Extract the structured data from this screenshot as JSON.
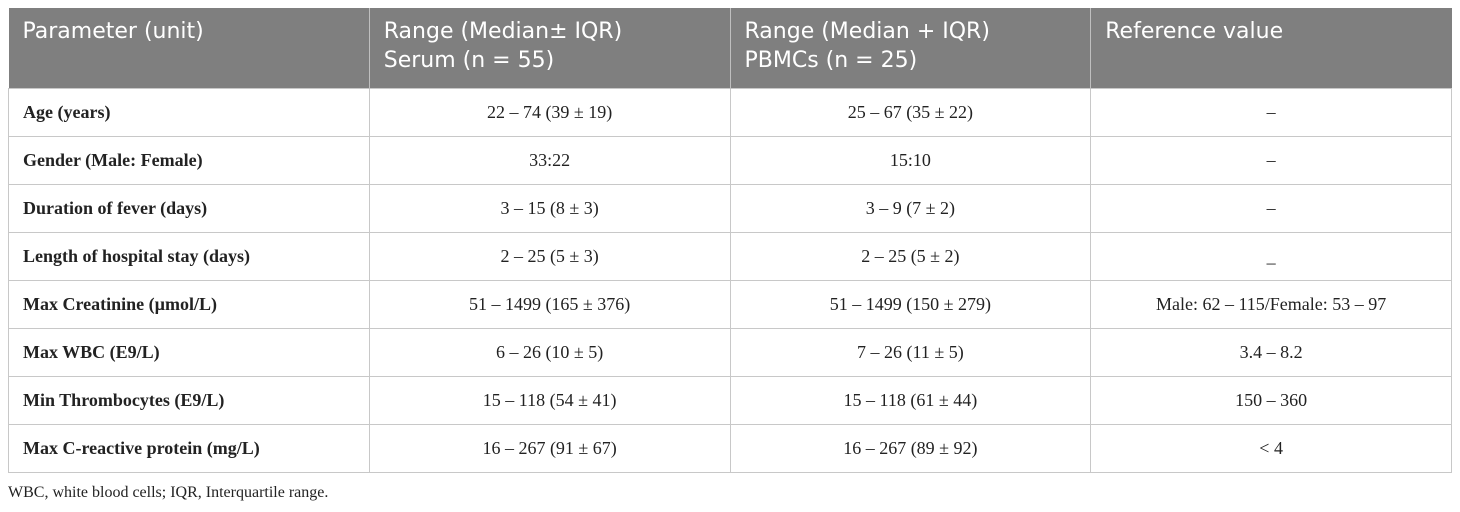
{
  "table": {
    "header": [
      [
        "Parameter (unit)"
      ],
      [
        "Range (Median± IQR)",
        "Serum (n = 55)"
      ],
      [
        "Range (Median + IQR)",
        "PBMCs (n = 25)"
      ],
      [
        "Reference value"
      ]
    ],
    "rows": [
      [
        "Age (years)",
        "22 – 74 (39 ± 19)",
        "25 – 67 (35 ± 22)",
        "–"
      ],
      [
        "Gender (Male: Female)",
        "33:22",
        "15:10",
        "–"
      ],
      [
        "Duration of fever (days)",
        "3 – 15 (8 ± 3)",
        "3 – 9 (7 ± 2)",
        "–"
      ],
      [
        "Length of hospital stay (days)",
        "2 – 25 (5 ± 3)",
        "2 – 25 (5 ± 2)",
        "_"
      ],
      [
        "Max Creatinine (µmol/L)",
        "51 – 1499 (165 ± 376)",
        "51 – 1499 (150 ± 279)",
        "Male: 62 – 115/Female: 53 – 97"
      ],
      [
        "Max WBC (E9/L)",
        "6 – 26 (10 ± 5)",
        "7 – 26 (11 ± 5)",
        "3.4 – 8.2"
      ],
      [
        "Min Thrombocytes (E9/L)",
        "15 – 118 (54 ± 41)",
        "15 – 118 (61 ± 44)",
        "150 – 360"
      ],
      [
        "Max C-reactive protein (mg/L)",
        "16 – 267 (91 ± 67)",
        "16 – 267 (89 ± 92)",
        "< 4"
      ]
    ],
    "footnote": "WBC, white blood cells; IQR, Interquartile range."
  }
}
